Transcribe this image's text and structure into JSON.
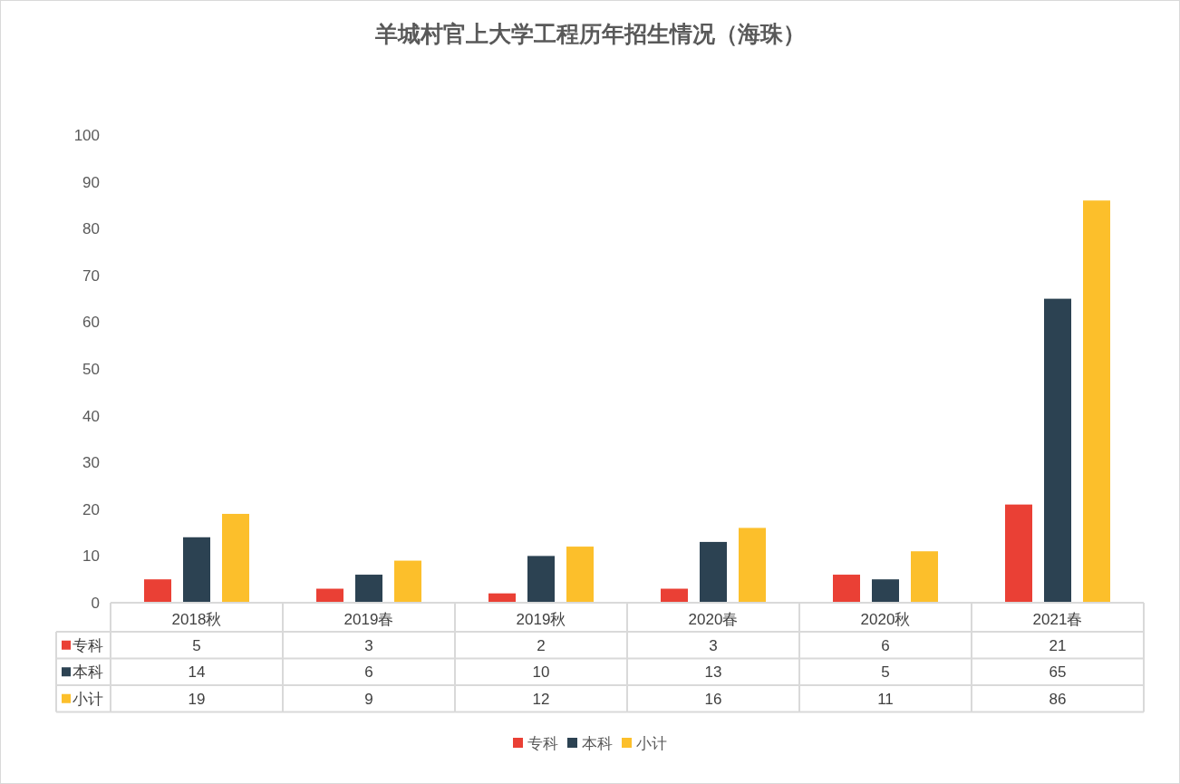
{
  "chart_data": {
    "type": "bar",
    "title": "羊城村官上大学工程历年招生情况（海珠）",
    "categories": [
      "2018秋",
      "2019春",
      "2019秋",
      "2020春",
      "2020秋",
      "2021春"
    ],
    "series": [
      {
        "name": "专科",
        "color": "#ea4035",
        "values": [
          5,
          3,
          2,
          3,
          6,
          21
        ]
      },
      {
        "name": "本科",
        "color": "#2c4252",
        "values": [
          14,
          6,
          10,
          13,
          5,
          65
        ]
      },
      {
        "name": "小计",
        "color": "#fcbf2b",
        "values": [
          19,
          9,
          12,
          16,
          11,
          86
        ]
      }
    ],
    "ylim": [
      0,
      100
    ],
    "yticks": [
      0,
      10,
      20,
      30,
      40,
      50,
      60,
      70,
      80,
      90,
      100
    ],
    "legend": "bottom",
    "data_labels": true
  }
}
